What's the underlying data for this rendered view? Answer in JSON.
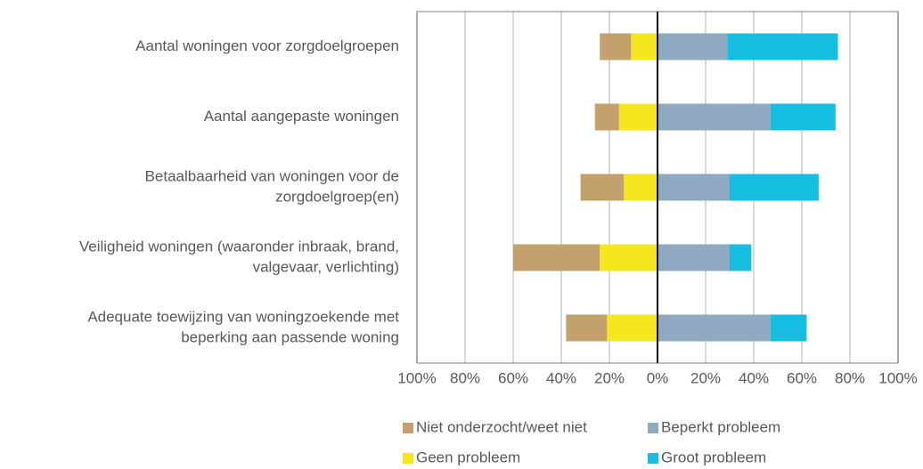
{
  "chart_data": {
    "type": "diverging-bar",
    "categories": [
      [
        "Aantal woningen voor zorgdoelgroepen"
      ],
      [
        "Aantal aangepaste woningen"
      ],
      [
        "Betaalbaarheid van woningen voor de",
        "zorgdoelgroep(en)"
      ],
      [
        "Veiligheid woningen (waaronder inbraak, brand,",
        "valgevaar, verlichting)"
      ],
      [
        "Adequate toewijzing van woningzoekende met",
        "beperking aan passende woning"
      ]
    ],
    "series": [
      {
        "name": "Niet onderzocht/weet niet",
        "color": "#c4a06c",
        "values": [
          -13,
          -10,
          -18,
          -36,
          -17
        ]
      },
      {
        "name": "Geen probleem",
        "color": "#f5e61e",
        "values": [
          -11,
          -16,
          -14,
          -24,
          -21
        ]
      },
      {
        "name": "Beperkt probleem",
        "color": "#8fa9c0",
        "values": [
          29,
          47,
          30,
          30,
          47
        ]
      },
      {
        "name": "Groot probleem",
        "color": "#15bde0",
        "values": [
          46,
          27,
          37,
          9,
          15
        ]
      }
    ],
    "xlim": [
      -100,
      100
    ],
    "xticks": [
      {
        "value": -100,
        "label": "100%"
      },
      {
        "value": -80,
        "label": "80%"
      },
      {
        "value": -60,
        "label": "60%"
      },
      {
        "value": -40,
        "label": "40%"
      },
      {
        "value": -20,
        "label": "20%"
      },
      {
        "value": 0,
        "label": "0%"
      },
      {
        "value": 20,
        "label": "20%"
      },
      {
        "value": 40,
        "label": "40%"
      },
      {
        "value": 60,
        "label": "60%"
      },
      {
        "value": 80,
        "label": "80%"
      },
      {
        "value": 100,
        "label": "100%"
      }
    ],
    "grid": true
  }
}
